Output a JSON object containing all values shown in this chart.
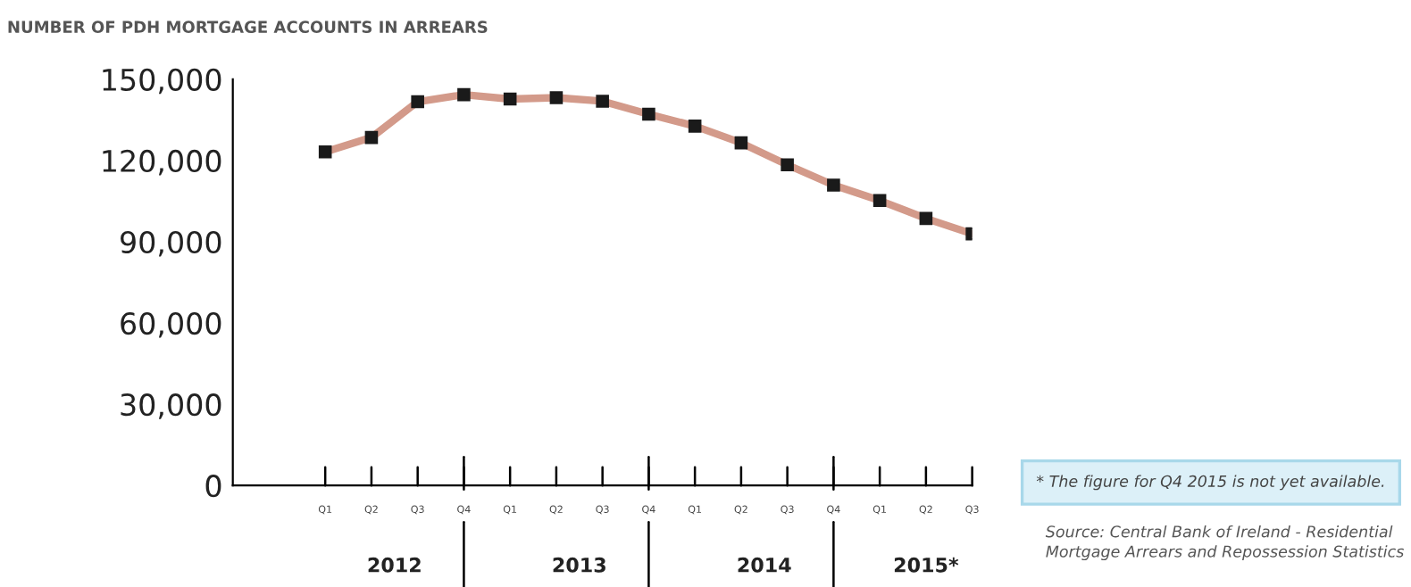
{
  "chart_data": {
    "type": "line",
    "title": "NUMBER OF PDH MORTGAGE ACCOUNTS IN ARREARS",
    "categories": [
      "Q1",
      "Q2",
      "Q3",
      "Q4",
      "Q1",
      "Q2",
      "Q3",
      "Q4",
      "Q1",
      "Q2",
      "Q3",
      "Q4",
      "Q1",
      "Q2",
      "Q3"
    ],
    "series": [
      {
        "color": "#d39a8a",
        "values": [
          123200,
          128500,
          141700,
          144300,
          142700,
          143200,
          141900,
          137100,
          132700,
          126500,
          118400,
          110900,
          105200,
          98600,
          92900
        ]
      }
    ],
    "ylim": [
      0,
      150000
    ],
    "yticks": [
      0,
      {
        "value": 30000,
        "label": "30,000"
      },
      {
        "value": 60000,
        "label": "60,000"
      },
      {
        "value": 90000,
        "label": "90,000"
      },
      {
        "value": 120000,
        "label": "120,000"
      },
      {
        "value": 150000,
        "label": "150,000"
      }
    ],
    "marker": "square",
    "line_style": "solid",
    "grid": false,
    "annotations": [
      "2012",
      "2013",
      "2014",
      "2015*",
      "* The figure for Q4 2015 is not yet available.",
      "Source: Central Bank of Ireland - Residential Mortgage Arrears and Repossession Statistics"
    ]
  }
}
